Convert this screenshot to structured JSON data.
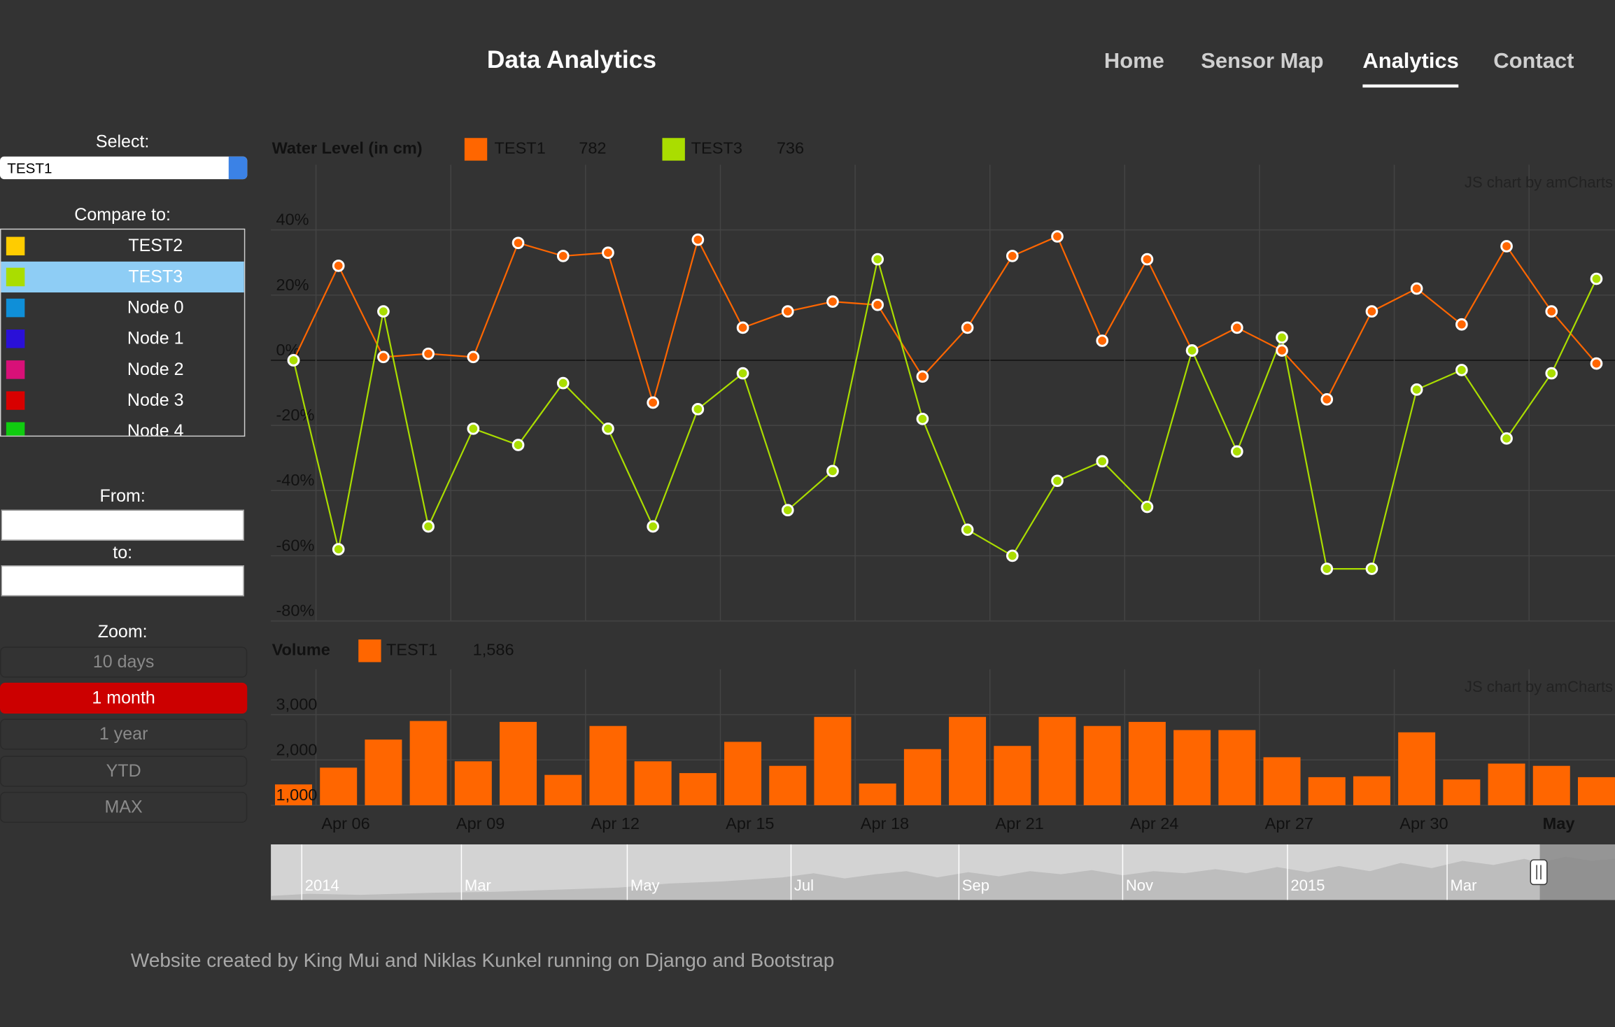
{
  "header": {
    "title": "Data Analytics"
  },
  "nav": {
    "items": [
      {
        "label": "Home",
        "active": false
      },
      {
        "label": "Sensor Map",
        "active": false
      },
      {
        "label": "Analytics",
        "active": true
      },
      {
        "label": "Contact",
        "active": false
      }
    ]
  },
  "sidebar": {
    "select_label": "Select:",
    "select_value": "TEST1",
    "compare_label": "Compare to:",
    "compare_items": [
      {
        "label": "TEST2",
        "color": "#ffcc00",
        "selected": false
      },
      {
        "label": "TEST3",
        "color": "#aadd00",
        "selected": true
      },
      {
        "label": "Node 0",
        "color": "#0f8fd8",
        "selected": false
      },
      {
        "label": "Node 1",
        "color": "#2a10d8",
        "selected": false
      },
      {
        "label": "Node 2",
        "color": "#d81078",
        "selected": false
      },
      {
        "label": "Node 3",
        "color": "#d80000",
        "selected": false
      },
      {
        "label": "Node 4",
        "color": "#10cc10",
        "selected": false
      }
    ],
    "from_label": "From:",
    "to_label": "to:",
    "zoom_label": "Zoom:",
    "zoom_options": [
      {
        "label": "10 days",
        "active": false
      },
      {
        "label": "1 month",
        "active": true
      },
      {
        "label": "1 year",
        "active": false
      },
      {
        "label": "YTD",
        "active": false
      },
      {
        "label": "MAX",
        "active": false
      }
    ]
  },
  "chart_data": [
    {
      "type": "line",
      "title": "Water Level (in cm)",
      "credit": "JS chart by amCharts",
      "ylim": [
        -80,
        60
      ],
      "yticks": [
        {
          "value": -80,
          "label": "-80%"
        },
        {
          "value": -60,
          "label": "-60%"
        },
        {
          "value": -40,
          "label": "-40%"
        },
        {
          "value": -20,
          "label": "-20%"
        },
        {
          "value": 0,
          "label": "0%"
        },
        {
          "value": 20,
          "label": "20%"
        },
        {
          "value": 40,
          "label": "40%"
        }
      ],
      "grid": true,
      "series": [
        {
          "name": "TEST1",
          "color": "#ff6600",
          "legend_value": 782,
          "values": [
            0,
            29,
            1,
            2,
            1,
            36,
            32,
            33,
            -13,
            37,
            10,
            15,
            18,
            17,
            -5,
            10,
            32,
            38,
            6,
            31,
            3,
            10,
            3,
            -12,
            15,
            22,
            11,
            35,
            15,
            -1
          ]
        },
        {
          "name": "TEST3",
          "color": "#aadd00",
          "legend_value": 736,
          "values": [
            0,
            -58,
            15,
            -51,
            -21,
            -26,
            -7,
            -21,
            -51,
            -15,
            -4,
            -46,
            -34,
            31,
            -18,
            -52,
            -60,
            -37,
            -31,
            -45,
            3,
            -28,
            7,
            -64,
            -64,
            -9,
            -3,
            -24,
            -4,
            25
          ]
        }
      ]
    },
    {
      "type": "bar",
      "title": "Volume",
      "credit": "JS chart by amCharts",
      "categories": [
        null,
        "Apr 06",
        null,
        null,
        "Apr 09",
        null,
        null,
        "Apr 12",
        null,
        null,
        "Apr 15",
        null,
        null,
        "Apr 18",
        null,
        null,
        "Apr 21",
        null,
        null,
        "Apr 24",
        null,
        null,
        "Apr 27",
        null,
        null,
        "Apr 30",
        null,
        null,
        "May",
        null
      ],
      "ylim": [
        1000,
        4000
      ],
      "yticks": [
        {
          "value": 1000,
          "label": "1,000"
        },
        {
          "value": 2000,
          "label": "2,000"
        },
        {
          "value": 3000,
          "label": "3,000"
        }
      ],
      "grid": true,
      "series": [
        {
          "name": "TEST1",
          "color": "#ff6600",
          "legend_value": "1,586",
          "values": [
            1460,
            1830,
            2450,
            2860,
            1970,
            2840,
            1670,
            2750,
            1970,
            1710,
            2400,
            1870,
            2950,
            1480,
            2240,
            2950,
            2310,
            2950,
            2750,
            2840,
            2660,
            2660,
            2060,
            1620,
            1640,
            2610,
            1570,
            1920,
            1870,
            1620
          ]
        }
      ]
    }
  ],
  "navigator": {
    "labels": [
      "2014",
      "Mar",
      "May",
      "Jul",
      "Sep",
      "Nov",
      "2015",
      "Mar"
    ]
  },
  "footer": {
    "text": "Website created by King Mui and Niklas Kunkel running on Django and Bootstrap"
  }
}
